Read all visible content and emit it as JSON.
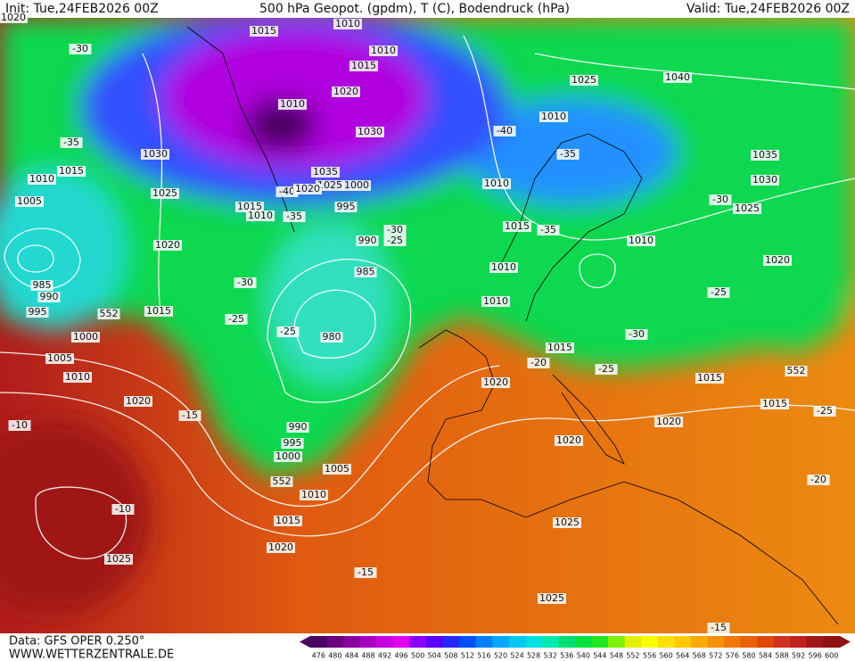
{
  "header": {
    "init": "Init: Tue,24FEB2026 00Z",
    "title": "500 hPa Geopot. (gpdm), T (C), Bodendruck (hPa)",
    "valid": "Valid: Tue,24FEB2026 00Z"
  },
  "footer": {
    "source": "Data: GFS OPER 0.250°",
    "site": "WWW.WETTERZENTRALE.DE"
  },
  "colorbar": {
    "values": [
      476,
      480,
      484,
      488,
      492,
      496,
      500,
      504,
      508,
      512,
      516,
      520,
      524,
      528,
      532,
      536,
      540,
      544,
      548,
      552,
      556,
      560,
      564,
      568,
      572,
      576,
      580,
      584,
      588,
      592,
      596,
      600
    ],
    "colors": [
      "#4b0062",
      "#6a0080",
      "#8a009e",
      "#a800c0",
      "#c800e0",
      "#e000f0",
      "#8c00ff",
      "#5a00ff",
      "#2828ff",
      "#0050ff",
      "#0080ff",
      "#00a8ff",
      "#00c8f0",
      "#00e0e0",
      "#00e8b0",
      "#00e070",
      "#00e040",
      "#20e820",
      "#80f000",
      "#e0f000",
      "#ffff00",
      "#ffe000",
      "#ffc800",
      "#ffa800",
      "#f89000",
      "#f07800",
      "#e86000",
      "#e04800",
      "#d03020",
      "#c02020",
      "#a01818",
      "#901010"
    ]
  },
  "map_labels": [
    "1020",
    "-30",
    "1015",
    "1010",
    "1010",
    "1015",
    "1010",
    "1020",
    "1030",
    "1035",
    "1025",
    "1000",
    "995",
    "1015",
    "1010",
    "990",
    "985",
    "980",
    "-25",
    "-30",
    "-25",
    "1030",
    "1025",
    "1020",
    "1015",
    "-35",
    "1015",
    "1010",
    "1005",
    "985",
    "990",
    "995",
    "1000",
    "1005",
    "1010",
    "1020",
    "-15",
    "-10",
    "1025",
    "-10",
    "1020",
    "1015",
    "1010",
    "1005",
    "1000",
    "995",
    "990",
    "552",
    "552",
    "552",
    "1025",
    "1040",
    "1010",
    "-40",
    "-35",
    "1035",
    "1030",
    "-30",
    "1025",
    "1010",
    "1015",
    "-35",
    "1010",
    "1020",
    "1010",
    "1010",
    "-25",
    "-30",
    "1015",
    "-20",
    "-25",
    "1015",
    "1015",
    "1020",
    "1020",
    "1020",
    "-25",
    "-20",
    "1025",
    "1025",
    "-15",
    "-15",
    "-30",
    "-25",
    "-40",
    "-35",
    "1020"
  ]
}
